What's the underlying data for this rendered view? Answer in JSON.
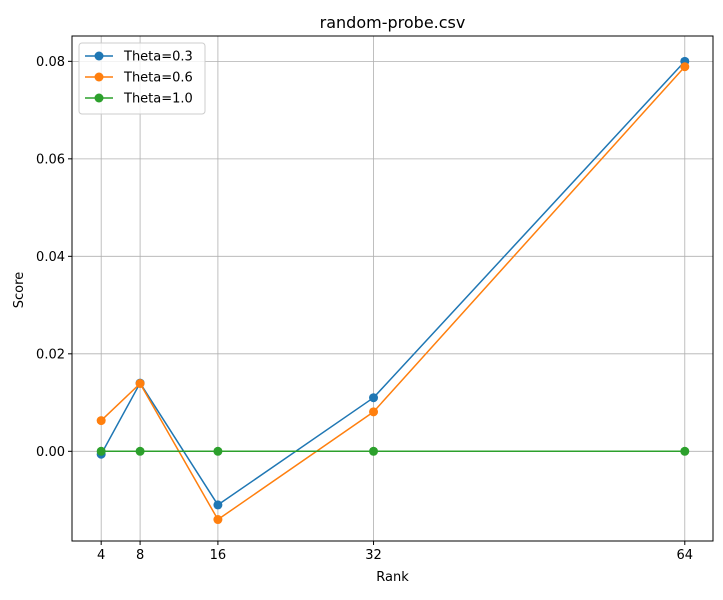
{
  "chart_data": {
    "type": "line",
    "title": "random-probe.csv",
    "xlabel": "Rank",
    "ylabel": "Score",
    "x": [
      4,
      8,
      16,
      32,
      64
    ],
    "xticks": [
      "4",
      "8",
      "16",
      "32",
      "64"
    ],
    "yticks": [
      "0.00",
      "0.02",
      "0.04",
      "0.06",
      "0.08"
    ],
    "ytick_values": [
      0.0,
      0.02,
      0.04,
      0.06,
      0.08
    ],
    "xlim": [
      1.0,
      66.9
    ],
    "ylim": [
      -0.0184,
      0.0852
    ],
    "grid": true,
    "legend_position": "top-left",
    "series": [
      {
        "name": "Theta=0.3",
        "color": "#1f77b4",
        "values": [
          -0.0006,
          0.014,
          -0.011,
          0.011,
          0.08
        ]
      },
      {
        "name": "Theta=0.6",
        "color": "#ff7f0e",
        "values": [
          0.0063,
          0.0139,
          -0.014,
          0.0081,
          0.0789
        ]
      },
      {
        "name": "Theta=1.0",
        "color": "#2ca02c",
        "values": [
          0.0,
          0.0,
          0.0,
          0.0,
          0.0
        ]
      }
    ]
  }
}
